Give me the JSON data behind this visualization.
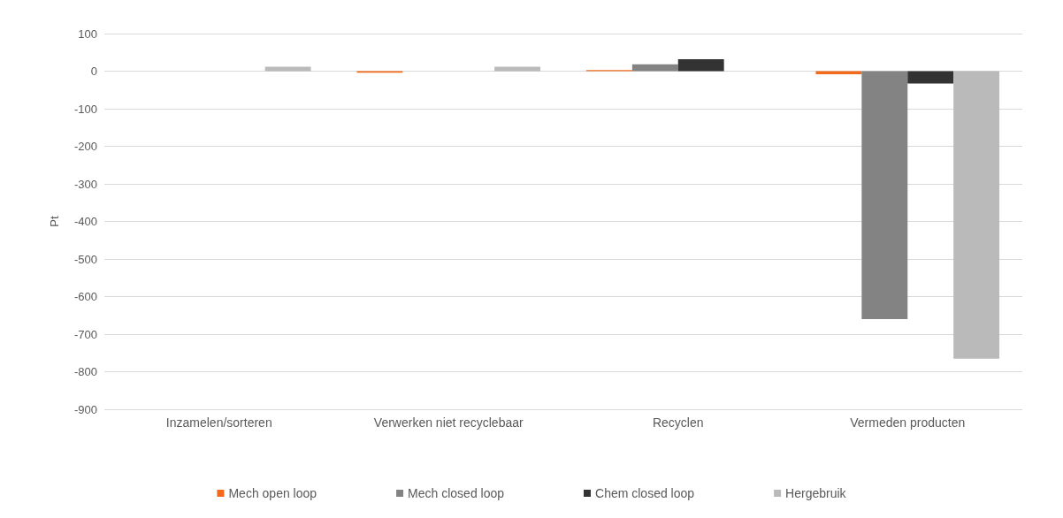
{
  "chart_data": {
    "type": "bar",
    "ylabel": "Pt",
    "categories": [
      "Inzamelen/sorteren",
      "Verwerken niet recyclebaar",
      "Recyclen",
      "Vermeden producten"
    ],
    "series": [
      {
        "name": "Mech open loop",
        "color": "#f26b1d",
        "values": [
          0,
          -4,
          3,
          -8
        ]
      },
      {
        "name": "Mech closed loop",
        "color": "#838383",
        "values": [
          0,
          0,
          18,
          -660
        ]
      },
      {
        "name": "Chem closed loop",
        "color": "#333333",
        "values": [
          0,
          0,
          32,
          -33
        ]
      },
      {
        "name": "Hergebruik",
        "color": "#bababa",
        "values": [
          12,
          12,
          0,
          -765
        ]
      }
    ],
    "ylim": [
      -900,
      100
    ],
    "yticks": [
      -900,
      -800,
      -700,
      -600,
      -500,
      -400,
      -300,
      -200,
      -100,
      0,
      100
    ],
    "grid": "y",
    "legend": "bottom"
  }
}
